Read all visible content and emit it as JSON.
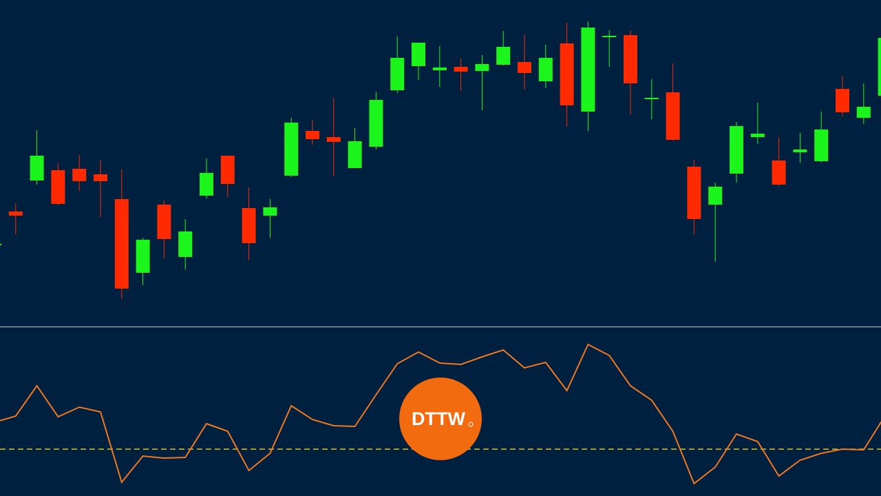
{
  "chart_data": [
    {
      "type": "candlestick",
      "up_color": "#1cf51c",
      "down_color": "#ff2a00",
      "ylim": [
        0,
        474
      ],
      "open": [
        119,
        167,
        212,
        227,
        229,
        221,
        185,
        78,
        177,
        101,
        190,
        248,
        172,
        161,
        219,
        284,
        275,
        230,
        261,
        343,
        378,
        372,
        377,
        371,
        380,
        384,
        356,
        411,
        312,
        420,
        423,
        330,
        340,
        232,
        177,
        222,
        275,
        241,
        253,
        240,
        345,
        303,
        335
      ],
      "high": [
        121,
        179,
        285,
        237,
        249,
        242,
        228,
        129,
        183,
        156,
        244,
        248,
        202,
        185,
        303,
        300,
        332,
        288,
        340,
        421,
        412,
        407,
        389,
        394,
        429,
        423,
        409,
        441,
        443,
        430,
        430,
        359,
        382,
        242,
        209,
        297,
        325,
        275,
        281,
        312,
        364,
        353,
        421
      ],
      "low": [
        117,
        134,
        206,
        176,
        197,
        159,
        40,
        60,
        99,
        83,
        186,
        188,
        96,
        129,
        217,
        264,
        218,
        230,
        257,
        339,
        358,
        348,
        342,
        314,
        379,
        344,
        346,
        290,
        284,
        377,
        308,
        301,
        270,
        134,
        94,
        209,
        265,
        204,
        238,
        238,
        305,
        294,
        334
      ],
      "close": [
        120,
        161,
        248,
        178,
        211,
        211,
        55,
        126,
        127,
        138,
        223,
        207,
        121,
        173,
        296,
        272,
        268,
        269,
        329,
        390,
        412,
        376,
        370,
        381,
        406,
        368,
        390,
        321,
        434,
        422,
        353,
        332,
        271,
        156,
        203,
        291,
        280,
        206,
        257,
        286,
        311,
        319,
        419
      ]
    },
    {
      "type": "line",
      "ylim": [
        0,
        240
      ],
      "series": [
        {
          "color": "#f07820",
          "values": [
            107,
            116,
            160,
            115,
            129,
            122,
            20,
            58,
            55,
            56,
            105,
            94,
            37,
            62,
            131,
            111,
            102,
            101,
            147,
            192,
            209,
            193,
            191,
            202,
            212,
            186,
            194,
            153,
            220,
            204,
            160,
            139,
            94,
            18,
            42,
            90,
            79,
            29,
            52,
            62,
            68,
            67,
            116
          ]
        }
      ],
      "level": 68,
      "level_color": "#e6c619"
    }
  ],
  "logo": {
    "text": "DTTW",
    "color": "#f26b0f"
  }
}
